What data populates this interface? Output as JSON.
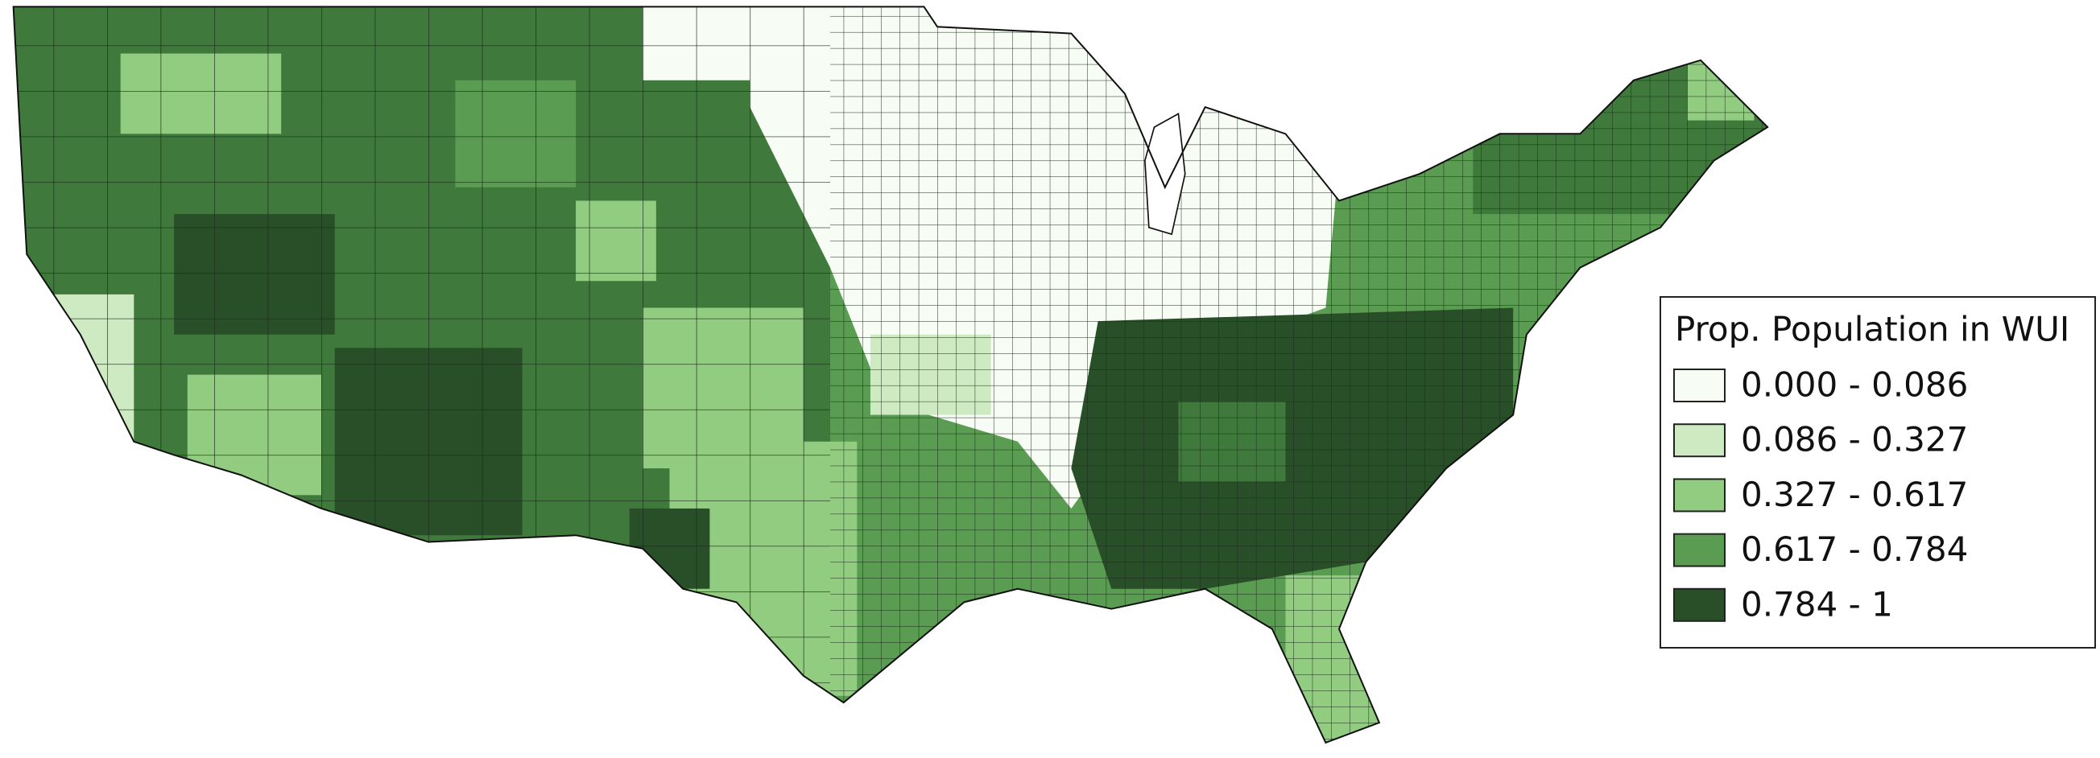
{
  "legend": {
    "title": "Prop. Population in WUI",
    "items": [
      {
        "label": "0.000 - 0.086",
        "color": "#f7fcf5"
      },
      {
        "label": "0.086 - 0.327",
        "color": "#cdeac3"
      },
      {
        "label": "0.327 - 0.617",
        "color": "#92cc80"
      },
      {
        "label": "0.617 - 0.784",
        "color": "#5a9c52"
      },
      {
        "label": "0.784 - 1",
        "color": "#284f28"
      }
    ]
  }
}
